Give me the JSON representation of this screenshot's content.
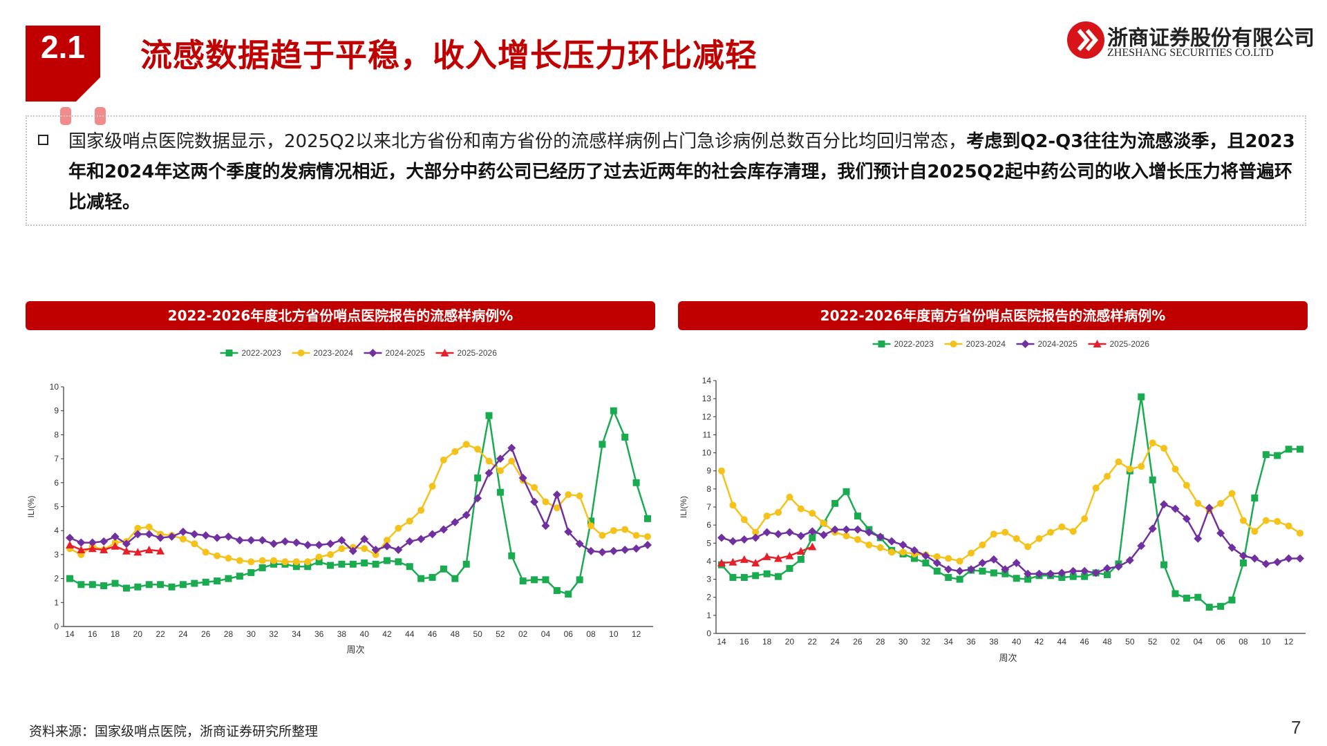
{
  "header": {
    "section": "2.1",
    "title": "流感数据趋于平稳，收入增长压力环比减轻"
  },
  "logo": {
    "name_cn": "浙商证券股份有限公司",
    "name_en": "ZHESHANG SECURITIES CO.LTD"
  },
  "bullet": {
    "plain": "国家级哨点医院数据显示，2025Q2以来北方省份和南方省份的流感样病例占门急诊病例总数百分比均回归常态，",
    "bold": "考虑到Q2-Q3往往为流感淡季，且2023年和2024年这两个季度的发病情况相近，大部分中药公司已经历了过去近两年的社会库存清理，我们预计自2025Q2起中药公司的收入增长压力将普遍环比减轻。"
  },
  "chart_data": [
    {
      "type": "line",
      "title": "2022-2026年度北方省份哨点医院报告的流感样病例%",
      "ylabel": "ILI(%)",
      "xlabel": "周次",
      "legend": "top",
      "categories": [
        "14",
        null,
        "16",
        null,
        "18",
        null,
        "20",
        null,
        "22",
        null,
        "24",
        null,
        "26",
        null,
        "28",
        null,
        "30",
        null,
        "32",
        null,
        "34",
        null,
        "36",
        null,
        "38",
        null,
        "40",
        null,
        "42",
        null,
        "44",
        null,
        "46",
        null,
        "48",
        null,
        "50",
        null,
        "52",
        null,
        "02",
        null,
        "04",
        null,
        "06",
        null,
        "08",
        null,
        "10",
        null,
        "12",
        null
      ],
      "ylim": [
        0,
        10
      ],
      "yticks": [
        0,
        1,
        2,
        3,
        4,
        5,
        6,
        7,
        8,
        9,
        10
      ],
      "series": [
        {
          "name": "2022-2023",
          "color": "#1aab50",
          "marker": "square",
          "values": [
            2.0,
            1.75,
            1.75,
            1.7,
            1.8,
            1.6,
            1.65,
            1.75,
            1.75,
            1.65,
            1.75,
            1.8,
            1.85,
            1.9,
            2.0,
            2.1,
            2.25,
            2.45,
            2.6,
            2.6,
            2.5,
            2.5,
            2.7,
            2.55,
            2.6,
            2.6,
            2.65,
            2.6,
            2.75,
            2.7,
            2.5,
            2.0,
            2.05,
            2.4,
            2.0,
            2.6,
            6.2,
            8.8,
            5.6,
            2.95,
            1.9,
            1.95,
            1.95,
            1.5,
            1.35,
            1.95,
            4.4,
            7.6,
            9.0,
            7.9,
            6.0,
            4.5
          ]
        },
        {
          "name": "2023-2024",
          "color": "#f5c21b",
          "marker": "circle",
          "values": [
            3.25,
            3.0,
            3.35,
            3.2,
            3.5,
            3.55,
            4.1,
            4.15,
            3.85,
            3.8,
            3.65,
            3.45,
            3.1,
            2.95,
            2.85,
            2.75,
            2.7,
            2.75,
            2.75,
            2.7,
            2.7,
            2.7,
            2.9,
            3.0,
            3.25,
            3.3,
            3.25,
            3.0,
            3.6,
            4.1,
            4.4,
            4.85,
            5.85,
            6.95,
            7.3,
            7.6,
            7.4,
            6.9,
            6.5,
            6.9,
            6.1,
            5.8,
            5.2,
            4.95,
            5.5,
            5.45,
            4.2,
            3.8,
            4.0,
            4.05,
            3.8,
            3.75
          ]
        },
        {
          "name": "2024-2025",
          "color": "#7030a0",
          "marker": "diamond",
          "values": [
            3.7,
            3.5,
            3.5,
            3.55,
            3.75,
            3.45,
            3.85,
            3.85,
            3.7,
            3.75,
            3.95,
            3.85,
            3.8,
            3.7,
            3.75,
            3.6,
            3.6,
            3.6,
            3.45,
            3.55,
            3.5,
            3.4,
            3.4,
            3.45,
            3.6,
            3.15,
            3.65,
            3.2,
            3.35,
            3.2,
            3.55,
            3.65,
            3.85,
            4.05,
            4.35,
            4.65,
            5.35,
            6.4,
            7.0,
            7.45,
            6.2,
            5.2,
            4.2,
            5.5,
            3.95,
            3.45,
            3.15,
            3.1,
            3.15,
            3.2,
            3.25,
            3.4
          ]
        },
        {
          "name": "2025-2026",
          "color": "#e5202a",
          "marker": "triangle",
          "values": [
            3.4,
            3.2,
            3.25,
            3.2,
            3.35,
            3.15,
            3.1,
            3.2,
            3.15,
            null,
            null,
            null,
            null,
            null,
            null,
            null,
            null,
            null,
            null,
            null,
            null,
            null,
            null,
            null,
            null,
            null,
            null,
            null,
            null,
            null,
            null,
            null,
            null,
            null,
            null,
            null,
            null,
            null,
            null,
            null,
            null,
            null,
            null,
            null,
            null,
            null,
            null,
            null,
            null,
            null,
            null,
            null
          ]
        }
      ]
    },
    {
      "type": "line",
      "title": "2022-2026年度南方省份哨点医院报告的流感样病例%",
      "ylabel": "ILI(%)",
      "xlabel": "周次",
      "legend": "top",
      "categories": [
        "14",
        null,
        "16",
        null,
        "18",
        null,
        "20",
        null,
        "22",
        null,
        "24",
        null,
        "26",
        null,
        "28",
        null,
        "30",
        null,
        "32",
        null,
        "34",
        null,
        "36",
        null,
        "38",
        null,
        "40",
        null,
        "42",
        null,
        "44",
        null,
        "46",
        null,
        "48",
        null,
        "50",
        null,
        "52",
        null,
        "02",
        null,
        "04",
        null,
        "06",
        null,
        "08",
        null,
        "10",
        null,
        "12",
        null
      ],
      "ylim": [
        0,
        14
      ],
      "yticks": [
        0,
        1,
        2,
        3,
        4,
        5,
        6,
        7,
        8,
        9,
        10,
        11,
        12,
        13,
        14
      ],
      "series": [
        {
          "name": "2022-2023",
          "color": "#1aab50",
          "marker": "square",
          "values": [
            3.8,
            3.1,
            3.1,
            3.2,
            3.3,
            3.15,
            3.6,
            4.1,
            5.3,
            6.1,
            7.2,
            7.85,
            6.5,
            5.75,
            5.3,
            4.6,
            4.4,
            4.15,
            3.9,
            3.45,
            3.1,
            3.0,
            3.5,
            3.45,
            3.35,
            3.3,
            3.05,
            3.0,
            3.2,
            3.2,
            3.1,
            3.15,
            3.15,
            3.35,
            3.25,
            3.85,
            9.0,
            13.1,
            8.5,
            3.8,
            2.2,
            1.95,
            2.0,
            1.45,
            1.5,
            1.85,
            3.9,
            7.5,
            9.9,
            9.85,
            10.2,
            10.2
          ]
        },
        {
          "name": "2023-2024",
          "color": "#f5c21b",
          "marker": "circle",
          "values": [
            9.0,
            7.1,
            6.3,
            5.6,
            6.5,
            6.7,
            7.55,
            6.9,
            6.65,
            6.1,
            5.6,
            5.4,
            5.2,
            4.9,
            4.75,
            4.5,
            4.5,
            4.4,
            4.35,
            4.25,
            4.15,
            4.0,
            4.45,
            4.9,
            5.5,
            5.6,
            5.25,
            4.8,
            5.25,
            5.6,
            5.9,
            5.65,
            6.35,
            8.05,
            8.7,
            9.5,
            9.1,
            9.25,
            10.55,
            10.25,
            9.1,
            8.2,
            7.2,
            6.8,
            7.2,
            7.75,
            6.25,
            5.65,
            6.25,
            6.2,
            5.95,
            5.55
          ]
        },
        {
          "name": "2024-2025",
          "color": "#7030a0",
          "marker": "diamond",
          "values": [
            5.3,
            5.1,
            5.2,
            5.3,
            5.6,
            5.5,
            5.6,
            5.4,
            5.65,
            5.45,
            5.75,
            5.75,
            5.75,
            5.6,
            5.35,
            5.1,
            4.9,
            4.6,
            4.3,
            3.9,
            3.55,
            3.45,
            3.55,
            3.9,
            4.1,
            3.55,
            3.9,
            3.3,
            3.3,
            3.3,
            3.35,
            3.45,
            3.45,
            3.35,
            3.6,
            3.7,
            4.05,
            4.85,
            5.8,
            7.15,
            6.9,
            6.35,
            5.25,
            6.95,
            5.55,
            4.75,
            4.3,
            4.15,
            3.85,
            3.95,
            4.15,
            4.15
          ]
        },
        {
          "name": "2025-2026",
          "color": "#e5202a",
          "marker": "triangle",
          "values": [
            3.9,
            3.95,
            4.1,
            3.9,
            4.25,
            4.15,
            4.3,
            4.55,
            4.8,
            null,
            null,
            null,
            null,
            null,
            null,
            null,
            null,
            null,
            null,
            null,
            null,
            null,
            null,
            null,
            null,
            null,
            null,
            null,
            null,
            null,
            null,
            null,
            null,
            null,
            null,
            null,
            null,
            null,
            null,
            null,
            null,
            null,
            null,
            null,
            null,
            null,
            null,
            null,
            null,
            null,
            null,
            null
          ]
        }
      ]
    }
  ],
  "source": "资料来源：国家级哨点医院，浙商证券研究所整理",
  "page_number": "7"
}
